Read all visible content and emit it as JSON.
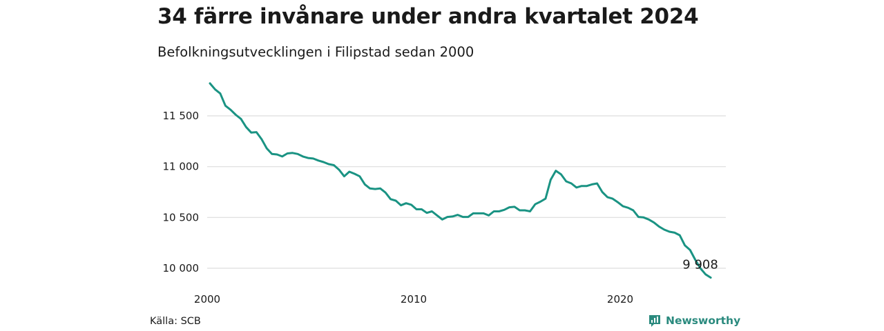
{
  "header": {
    "title": "34 färre invånare under andra kvartalet 2024",
    "subtitle": "Befolkningsutvecklingen i Filipstad sedan 2000"
  },
  "footer": {
    "source": "Källa: SCB",
    "brand": "Newsworthy"
  },
  "colors": {
    "line": "#1a9383",
    "grid": "#dddddd",
    "brand": "#2a8a7e"
  },
  "chart_data": {
    "type": "line",
    "title": "34 färre invånare under andra kvartalet 2024",
    "subtitle": "Befolkningsutvecklingen i Filipstad sedan 2000",
    "xlabel": "",
    "ylabel": "",
    "x_ticks": [
      2000,
      2010,
      2020
    ],
    "x_tick_labels": [
      "2000",
      "2010",
      "2020"
    ],
    "y_ticks": [
      10000,
      10500,
      11000,
      11500
    ],
    "y_tick_labels": [
      "10 000",
      "10 500",
      "11 000",
      "11 500"
    ],
    "xlim": [
      2000,
      2024.5
    ],
    "ylim": [
      9900,
      11850
    ],
    "grid": "horizontal",
    "end_label": "9 908",
    "series": [
      {
        "x": [
          2000.0,
          2000.25,
          2000.5,
          2000.75,
          2001.0,
          2001.25,
          2001.5,
          2001.75,
          2002.0,
          2002.25,
          2002.5,
          2002.75,
          2003.0,
          2003.25,
          2003.5,
          2003.75,
          2004.0,
          2004.25,
          2004.5,
          2004.75,
          2005.0,
          2005.25,
          2005.5,
          2005.75,
          2006.0,
          2006.25,
          2006.5,
          2006.75,
          2007.0,
          2007.25,
          2007.5,
          2007.75,
          2008.0,
          2008.25,
          2008.5,
          2008.75,
          2009.0,
          2009.25,
          2009.5,
          2009.75,
          2010.0,
          2010.25,
          2010.5,
          2010.75,
          2011.0,
          2011.25,
          2011.5,
          2011.75,
          2012.0,
          2012.25,
          2012.5,
          2012.75,
          2013.0,
          2013.25,
          2013.5,
          2013.75,
          2014.0,
          2014.25,
          2014.5,
          2014.75,
          2015.0,
          2015.25,
          2015.5,
          2015.75,
          2016.0,
          2016.25,
          2016.5,
          2016.75,
          2017.0,
          2017.25,
          2017.5,
          2017.75,
          2018.0,
          2018.25,
          2018.5,
          2018.75,
          2019.0,
          2019.25,
          2019.5,
          2019.75,
          2020.0,
          2020.25,
          2020.5,
          2020.75,
          2021.0,
          2021.25,
          2021.5,
          2021.75,
          2022.0,
          2022.25,
          2022.5,
          2022.75,
          2023.0,
          2023.25,
          2023.5,
          2023.75,
          2024.0,
          2024.25
        ],
        "values": [
          11820,
          11760,
          11720,
          11600,
          11560,
          11510,
          11470,
          11390,
          11335,
          11340,
          11270,
          11180,
          11125,
          11120,
          11100,
          11130,
          11135,
          11125,
          11100,
          11085,
          11080,
          11060,
          11045,
          11025,
          11015,
          10970,
          10905,
          10950,
          10930,
          10905,
          10825,
          10785,
          10780,
          10785,
          10745,
          10680,
          10665,
          10620,
          10640,
          10625,
          10580,
          10580,
          10545,
          10560,
          10520,
          10480,
          10505,
          10510,
          10525,
          10505,
          10505,
          10540,
          10540,
          10540,
          10520,
          10560,
          10560,
          10575,
          10600,
          10605,
          10570,
          10570,
          10560,
          10630,
          10655,
          10685,
          10870,
          10960,
          10925,
          10855,
          10835,
          10795,
          10810,
          10810,
          10825,
          10835,
          10750,
          10700,
          10685,
          10650,
          10610,
          10595,
          10570,
          10505,
          10500,
          10480,
          10450,
          10410,
          10380,
          10360,
          10350,
          10325,
          10225,
          10180,
          10085,
          10000,
          9940,
          9908
        ]
      }
    ]
  }
}
